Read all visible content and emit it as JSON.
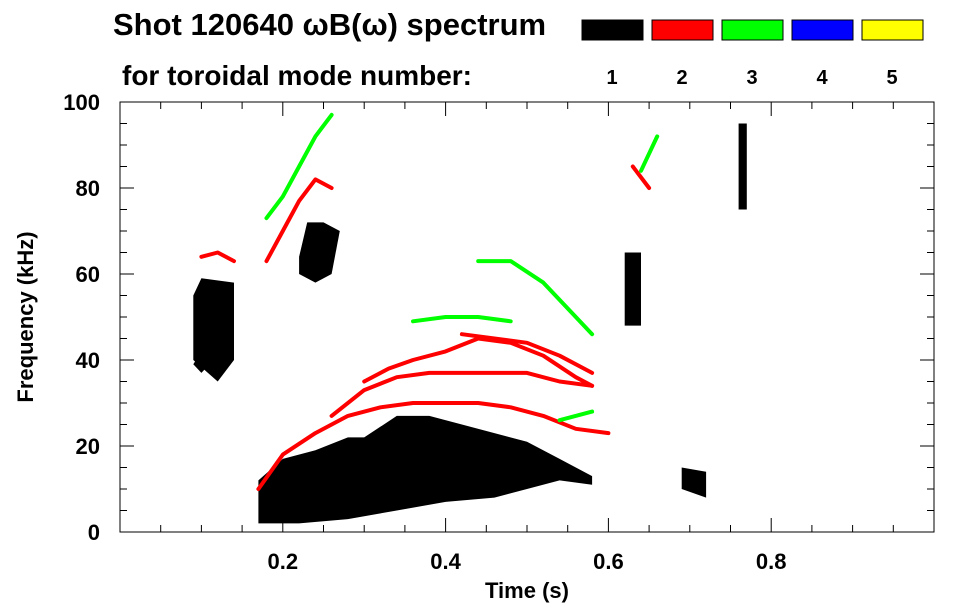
{
  "chart_data": {
    "type": "heatmap",
    "title": "Shot 120640 ωB(ω) spectrum",
    "subtitle": "for toroidal mode number:",
    "xlabel": "Time (s)",
    "ylabel": "Frequency (kHz)",
    "xlim": [
      0.0,
      1.0
    ],
    "ylim": [
      0,
      100
    ],
    "xticks": [
      0.2,
      0.4,
      0.6,
      0.8
    ],
    "xtick_labels": [
      "0.2",
      "0.4",
      "0.6",
      "0.8"
    ],
    "yticks": [
      0,
      20,
      40,
      60,
      80,
      100
    ],
    "ytick_labels": [
      "0",
      "20",
      "40",
      "60",
      "80",
      "100"
    ],
    "legend": [
      {
        "label": "1",
        "color": "#000000"
      },
      {
        "label": "2",
        "color": "#ff0000"
      },
      {
        "label": "3",
        "color": "#00ff00"
      },
      {
        "label": "4",
        "color": "#0000ff"
      },
      {
        "label": "5",
        "color": "#ffff00"
      }
    ],
    "regions": [
      {
        "mode": 1,
        "points": [
          [
            0.09,
            55
          ],
          [
            0.1,
            59
          ],
          [
            0.14,
            58
          ],
          [
            0.14,
            40
          ],
          [
            0.12,
            35
          ],
          [
            0.09,
            40
          ]
        ]
      },
      {
        "mode": 1,
        "points": [
          [
            0.09,
            39
          ],
          [
            0.1,
            37
          ],
          [
            0.11,
            39
          ],
          [
            0.1,
            42
          ]
        ]
      },
      {
        "mode": 1,
        "points": [
          [
            0.17,
            12
          ],
          [
            0.2,
            17
          ],
          [
            0.24,
            19
          ],
          [
            0.28,
            22
          ],
          [
            0.3,
            22
          ],
          [
            0.34,
            27
          ],
          [
            0.38,
            27
          ],
          [
            0.42,
            25
          ],
          [
            0.46,
            23
          ],
          [
            0.5,
            21
          ],
          [
            0.54,
            17
          ],
          [
            0.58,
            13
          ],
          [
            0.58,
            11
          ],
          [
            0.54,
            12
          ],
          [
            0.5,
            10
          ],
          [
            0.46,
            8
          ],
          [
            0.4,
            7
          ],
          [
            0.34,
            5
          ],
          [
            0.28,
            3
          ],
          [
            0.22,
            2
          ],
          [
            0.17,
            2
          ]
        ]
      },
      {
        "mode": 1,
        "points": [
          [
            0.22,
            64
          ],
          [
            0.23,
            72
          ],
          [
            0.25,
            72
          ],
          [
            0.27,
            70
          ],
          [
            0.26,
            60
          ],
          [
            0.24,
            58
          ],
          [
            0.22,
            60
          ]
        ]
      },
      {
        "mode": 1,
        "points": [
          [
            0.62,
            65
          ],
          [
            0.64,
            65
          ],
          [
            0.64,
            48
          ],
          [
            0.62,
            48
          ]
        ]
      },
      {
        "mode": 1,
        "points": [
          [
            0.76,
            95
          ],
          [
            0.77,
            95
          ],
          [
            0.77,
            75
          ],
          [
            0.76,
            75
          ]
        ]
      },
      {
        "mode": 1,
        "points": [
          [
            0.69,
            15
          ],
          [
            0.72,
            14
          ],
          [
            0.72,
            8
          ],
          [
            0.69,
            10
          ]
        ]
      }
    ],
    "lines": [
      {
        "mode": 2,
        "points": [
          [
            0.1,
            64
          ],
          [
            0.12,
            65
          ],
          [
            0.14,
            63
          ]
        ]
      },
      {
        "mode": 2,
        "points": [
          [
            0.18,
            63
          ],
          [
            0.2,
            70
          ],
          [
            0.22,
            77
          ],
          [
            0.24,
            82
          ],
          [
            0.26,
            80
          ]
        ]
      },
      {
        "mode": 2,
        "points": [
          [
            0.17,
            10
          ],
          [
            0.2,
            18
          ],
          [
            0.24,
            23
          ],
          [
            0.28,
            27
          ],
          [
            0.32,
            29
          ],
          [
            0.36,
            30
          ],
          [
            0.4,
            30
          ],
          [
            0.44,
            30
          ],
          [
            0.48,
            29
          ],
          [
            0.52,
            27
          ],
          [
            0.56,
            24
          ],
          [
            0.6,
            23
          ]
        ]
      },
      {
        "mode": 2,
        "points": [
          [
            0.26,
            27
          ],
          [
            0.3,
            33
          ],
          [
            0.34,
            36
          ],
          [
            0.38,
            37
          ],
          [
            0.42,
            37
          ],
          [
            0.46,
            37
          ],
          [
            0.5,
            37
          ],
          [
            0.54,
            35
          ],
          [
            0.58,
            34
          ]
        ]
      },
      {
        "mode": 2,
        "points": [
          [
            0.3,
            35
          ],
          [
            0.33,
            38
          ],
          [
            0.36,
            40
          ],
          [
            0.4,
            42
          ],
          [
            0.44,
            45
          ],
          [
            0.48,
            44
          ],
          [
            0.52,
            41
          ],
          [
            0.56,
            36
          ],
          [
            0.58,
            34
          ]
        ]
      },
      {
        "mode": 2,
        "points": [
          [
            0.42,
            46
          ],
          [
            0.46,
            45
          ],
          [
            0.5,
            44
          ],
          [
            0.54,
            41
          ],
          [
            0.58,
            37
          ]
        ]
      },
      {
        "mode": 2,
        "points": [
          [
            0.63,
            85
          ],
          [
            0.65,
            80
          ]
        ]
      },
      {
        "mode": 3,
        "points": [
          [
            0.44,
            63
          ],
          [
            0.48,
            63
          ],
          [
            0.52,
            58
          ],
          [
            0.56,
            50
          ],
          [
            0.58,
            46
          ]
        ]
      },
      {
        "mode": 3,
        "points": [
          [
            0.36,
            49
          ],
          [
            0.4,
            50
          ],
          [
            0.44,
            50
          ],
          [
            0.48,
            49
          ]
        ]
      },
      {
        "mode": 3,
        "points": [
          [
            0.18,
            73
          ],
          [
            0.2,
            78
          ],
          [
            0.22,
            85
          ],
          [
            0.24,
            92
          ],
          [
            0.26,
            97
          ]
        ]
      },
      {
        "mode": 3,
        "points": [
          [
            0.64,
            84
          ],
          [
            0.66,
            92
          ]
        ]
      },
      {
        "mode": 3,
        "points": [
          [
            0.54,
            26
          ],
          [
            0.58,
            28
          ]
        ]
      }
    ]
  }
}
